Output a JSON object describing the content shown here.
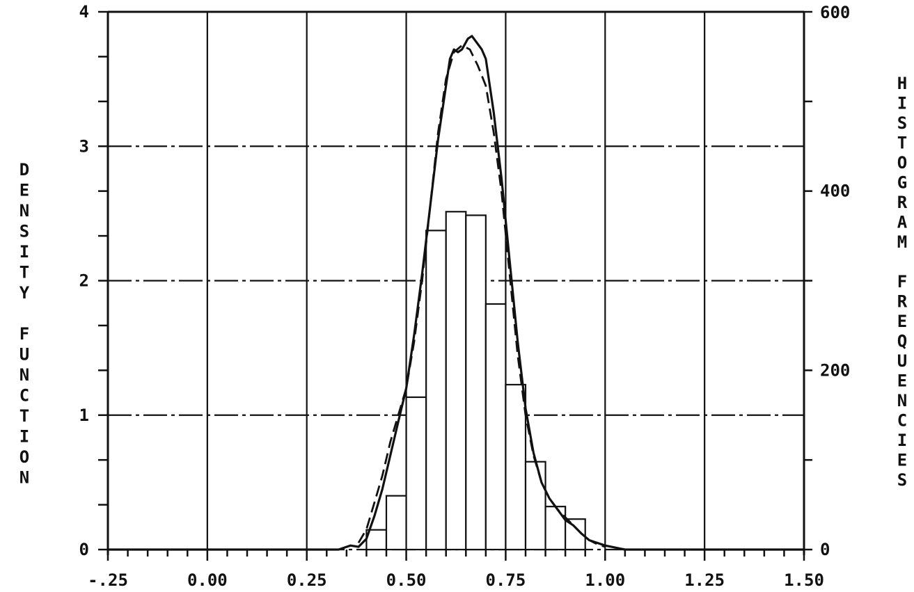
{
  "chart_data": {
    "type": "bar",
    "title": "",
    "xlabel": "",
    "ylabel": "DENSITY FUNCTION",
    "y2label": "HISTOGRAM FREQUENCIES",
    "xlim": [
      -0.25,
      1.5
    ],
    "ylim": [
      0,
      4
    ],
    "y2lim": [
      0,
      600
    ],
    "grid": true,
    "x_ticks": [
      -0.25,
      0.0,
      0.25,
      0.5,
      0.75,
      1.0,
      1.25,
      1.5
    ],
    "x_tick_labels": [
      "-.25",
      "0.00",
      "0.25",
      "0.50",
      "0.75",
      "1.00",
      "1.25",
      "1.50"
    ],
    "y_ticks": [
      0,
      1,
      2,
      3,
      4
    ],
    "y_tick_labels": [
      "0",
      "1",
      "2",
      "3",
      "4"
    ],
    "y2_ticks": [
      0,
      200,
      400,
      600
    ],
    "y2_tick_labels": [
      "0",
      "200",
      "400",
      "600"
    ],
    "histogram": {
      "bin_width": 0.05,
      "bin_lefts": [
        0.4,
        0.45,
        0.5,
        0.55,
        0.6,
        0.65,
        0.7,
        0.75,
        0.8,
        0.85,
        0.9
      ],
      "frequencies": [
        22,
        60,
        170,
        356,
        377,
        373,
        274,
        184,
        98,
        48,
        34
      ]
    },
    "series": [
      {
        "style": "solid",
        "x": [
          -0.25,
          0.0,
          0.25,
          0.33,
          0.36,
          0.38,
          0.4,
          0.42,
          0.44,
          0.46,
          0.48,
          0.5,
          0.52,
          0.54,
          0.56,
          0.58,
          0.6,
          0.61,
          0.62,
          0.63,
          0.64,
          0.655,
          0.665,
          0.675,
          0.69,
          0.7,
          0.72,
          0.74,
          0.76,
          0.78,
          0.8,
          0.82,
          0.84,
          0.86,
          0.88,
          0.9,
          0.92,
          0.94,
          0.96,
          1.0,
          1.05,
          1.5
        ],
        "y": [
          0.0,
          0.0,
          0.0,
          0.0,
          0.03,
          0.02,
          0.08,
          0.25,
          0.45,
          0.7,
          0.95,
          1.2,
          1.6,
          2.05,
          2.55,
          3.05,
          3.45,
          3.65,
          3.72,
          3.7,
          3.72,
          3.8,
          3.82,
          3.78,
          3.72,
          3.65,
          3.25,
          2.75,
          2.15,
          1.55,
          1.05,
          0.72,
          0.5,
          0.38,
          0.3,
          0.22,
          0.18,
          0.12,
          0.07,
          0.03,
          0.0,
          0.0
        ]
      },
      {
        "style": "dashed",
        "x": [
          0.38,
          0.4,
          0.42,
          0.44,
          0.46,
          0.48,
          0.5,
          0.52,
          0.54,
          0.56,
          0.58,
          0.6,
          0.62,
          0.64,
          0.66,
          0.68,
          0.7,
          0.72,
          0.74,
          0.76,
          0.78,
          0.8,
          0.82,
          0.84,
          0.86,
          0.88,
          0.9,
          0.92,
          0.94,
          0.96,
          0.98,
          1.0
        ],
        "y": [
          0.05,
          0.15,
          0.35,
          0.55,
          0.8,
          1.0,
          1.2,
          1.55,
          2.0,
          2.55,
          3.1,
          3.5,
          3.7,
          3.75,
          3.72,
          3.6,
          3.45,
          3.1,
          2.65,
          2.05,
          1.45,
          1.0,
          0.7,
          0.5,
          0.38,
          0.3,
          0.24,
          0.18,
          0.12,
          0.07,
          0.04,
          0.02
        ]
      }
    ],
    "legend": "none"
  }
}
